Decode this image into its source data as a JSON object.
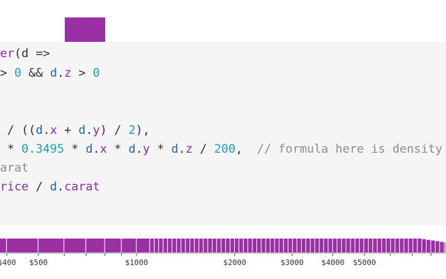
{
  "colors": {
    "accent": "#9a30a4",
    "keyword": "#8b2aa8",
    "number": "#1e9fb5",
    "variable": "#1d66a6",
    "comment": "#8c8c8c",
    "panel_bg": "#f5f5f5"
  },
  "code": {
    "lines": [
      [
        {
          "t": "er",
          "c": "fn"
        },
        {
          "t": "(d =>",
          "c": "op"
        }
      ],
      [
        {
          "t": "> ",
          "c": "op"
        },
        {
          "t": "0",
          "c": "num"
        },
        {
          "t": " && ",
          "c": "op"
        },
        {
          "t": "d",
          "c": "var"
        },
        {
          "t": ".",
          "c": "op"
        },
        {
          "t": "z",
          "c": "fn"
        },
        {
          "t": " > ",
          "c": "op"
        },
        {
          "t": "0",
          "c": "num"
        }
      ],
      [],
      [
        {
          "t": " / ((",
          "c": "op"
        },
        {
          "t": "d",
          "c": "var"
        },
        {
          "t": ".",
          "c": "op"
        },
        {
          "t": "x",
          "c": "fn"
        },
        {
          "t": " + ",
          "c": "op"
        },
        {
          "t": "d",
          "c": "var"
        },
        {
          "t": ".",
          "c": "op"
        },
        {
          "t": "y",
          "c": "fn"
        },
        {
          "t": ") / ",
          "c": "op"
        },
        {
          "t": "2",
          "c": "num"
        },
        {
          "t": "),",
          "c": "op"
        }
      ],
      [
        {
          "t": " * ",
          "c": "op"
        },
        {
          "t": "0.3495",
          "c": "num"
        },
        {
          "t": " * ",
          "c": "op"
        },
        {
          "t": "d",
          "c": "var"
        },
        {
          "t": ".",
          "c": "op"
        },
        {
          "t": "x",
          "c": "fn"
        },
        {
          "t": " * ",
          "c": "op"
        },
        {
          "t": "d",
          "c": "var"
        },
        {
          "t": ".",
          "c": "op"
        },
        {
          "t": "y",
          "c": "fn"
        },
        {
          "t": " * ",
          "c": "op"
        },
        {
          "t": "d",
          "c": "var"
        },
        {
          "t": ".",
          "c": "op"
        },
        {
          "t": "z",
          "c": "fn"
        },
        {
          "t": " / ",
          "c": "op"
        },
        {
          "t": "200",
          "c": "num"
        },
        {
          "t": ",  ",
          "c": "op"
        },
        {
          "t": "// formula here is density",
          "c": "com"
        }
      ],
      [
        {
          "t": "arat",
          "c": "com"
        }
      ],
      [
        {
          "t": "rice",
          "c": "fn"
        },
        {
          "t": " / ",
          "c": "op"
        },
        {
          "t": "d",
          "c": "var"
        },
        {
          "t": ".",
          "c": "op"
        },
        {
          "t": "carat",
          "c": "fn"
        }
      ]
    ]
  },
  "chart_data": {
    "type": "bar",
    "scale": "log",
    "domain": [
      380,
      20000
    ],
    "tick_labels": [
      "$400",
      "$500",
      "$1000",
      "$2000",
      "$3000",
      "$4000",
      "$5000"
    ],
    "tick_values": [
      400,
      500,
      1000,
      2000,
      3000,
      4000,
      5000
    ]
  }
}
